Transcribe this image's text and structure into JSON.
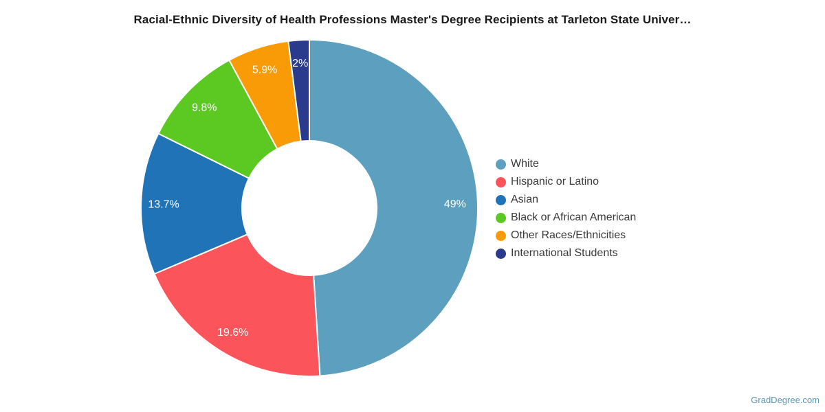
{
  "chart_data": {
    "type": "pie",
    "donut": true,
    "title": "Racial-Ethnic Diversity of Health Professions Master's Degree Recipients at Tarleton State Univer…",
    "legend_position": "right",
    "start_angle_deg": 0,
    "direction": "clockwise",
    "slices": [
      {
        "label": "White",
        "value": 49,
        "display": "49%",
        "color": "#5C9FBF"
      },
      {
        "label": "Hispanic or Latino",
        "value": 19.6,
        "display": "19.6%",
        "color": "#FB545A"
      },
      {
        "label": "Asian",
        "value": 13.7,
        "display": "13.7%",
        "color": "#2173B8"
      },
      {
        "label": "Black or African American",
        "value": 9.8,
        "display": "9.8%",
        "color": "#5BC922"
      },
      {
        "label": "Other Races/Ethnicities",
        "value": 5.9,
        "display": "5.9%",
        "color": "#F89B06"
      },
      {
        "label": "International Students",
        "value": 2,
        "display": "2%",
        "color": "#2A3A8C"
      }
    ]
  },
  "watermark": {
    "label": "GradDegree.com",
    "color": "#5c95b5"
  }
}
